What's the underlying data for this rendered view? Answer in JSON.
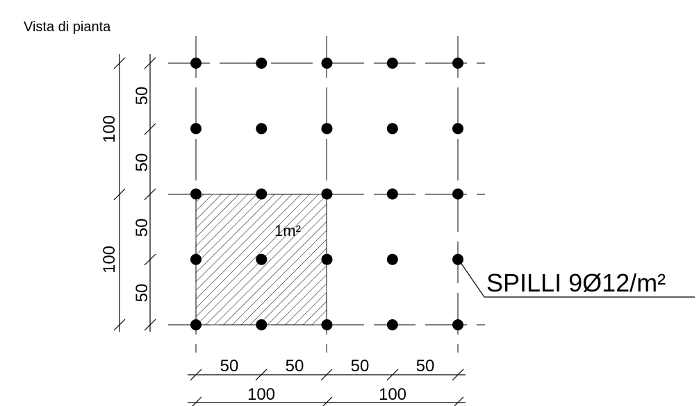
{
  "title": "Vista di pianta",
  "area_label": "1m²",
  "callout": "SPILLI 9Ø12/m²",
  "dimensions": {
    "left_outer": [
      "100",
      "100"
    ],
    "left_inner": [
      "50",
      "50",
      "50",
      "50"
    ],
    "bottom_inner": [
      "50",
      "50",
      "50",
      "50"
    ],
    "bottom_outer": [
      "100",
      "100"
    ]
  },
  "grid": {
    "columns": 5,
    "rows": 5
  },
  "colors": {
    "ink": "#000000",
    "background": "#ffffff"
  }
}
